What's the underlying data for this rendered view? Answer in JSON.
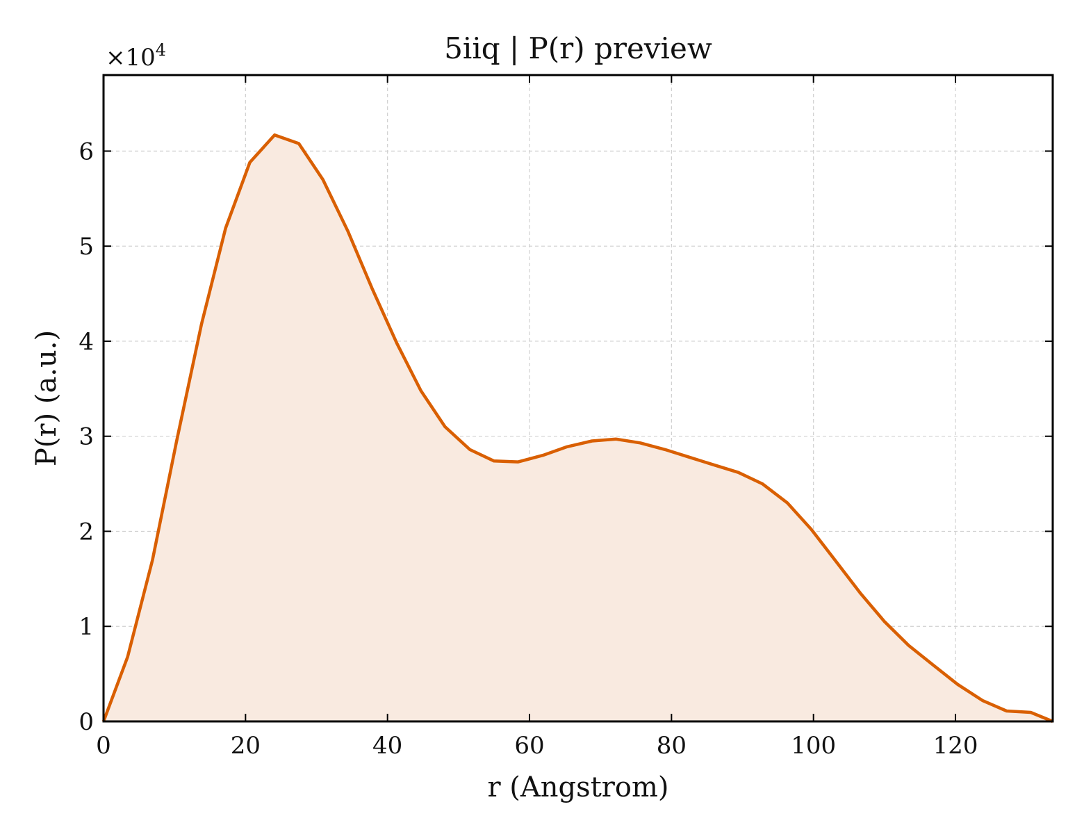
{
  "chart_data": {
    "type": "area",
    "title": "5iiq | P(r) preview",
    "xlabel": "r (Angstrom)",
    "ylabel": "P(r) (a.u.)",
    "y_multiplier_label": "×10",
    "y_multiplier_exponent": "4",
    "xlim": [
      0,
      133.7
    ],
    "ylim": [
      0,
      68000
    ],
    "xticks": [
      0,
      20,
      40,
      60,
      80,
      100,
      120
    ],
    "yticks": [
      0,
      10000,
      20000,
      30000,
      40000,
      50000,
      60000
    ],
    "ytick_labels": [
      "0",
      "1",
      "2",
      "3",
      "4",
      "5",
      "6"
    ],
    "grid": true,
    "legend": "none",
    "colors": {
      "line": "#d95f02",
      "fill": "#f9eae0",
      "grid": "#cfcfcf"
    },
    "series": [
      {
        "x": [
          0,
          3.4,
          6.9,
          10.3,
          13.8,
          17.2,
          20.6,
          24.1,
          27.5,
          30.9,
          34.4,
          37.8,
          41.3,
          44.7,
          48.1,
          51.6,
          55.0,
          58.4,
          61.9,
          65.3,
          68.8,
          72.2,
          75.6,
          79.1,
          82.5,
          85.9,
          89.4,
          92.8,
          96.3,
          99.7,
          103.1,
          106.6,
          110.0,
          113.4,
          116.9,
          120.3,
          123.8,
          127.2,
          130.6,
          133.7
        ],
        "y": [
          0,
          6800,
          17000,
          29500,
          41800,
          51900,
          58800,
          61700,
          60800,
          57000,
          51600,
          45600,
          39800,
          34800,
          31000,
          28600,
          27400,
          27300,
          28000,
          28900,
          29500,
          29700,
          29300,
          28600,
          27800,
          27000,
          26200,
          25000,
          23000,
          20200,
          16900,
          13500,
          10500,
          8000,
          5900,
          3900,
          2200,
          1100,
          950,
          0
        ]
      }
    ]
  }
}
